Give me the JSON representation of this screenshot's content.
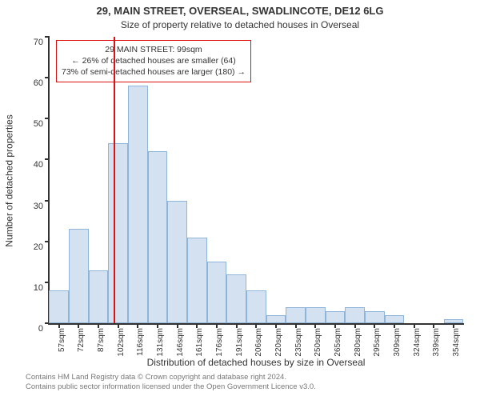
{
  "titles": {
    "main": "29, MAIN STREET, OVERSEAL, SWADLINCOTE, DE12 6LG",
    "sub": "Size of property relative to detached houses in Overseal"
  },
  "axes": {
    "ylabel": "Number of detached properties",
    "xlabel": "Distribution of detached houses by size in Overseal",
    "ylim": [
      0,
      70
    ],
    "ytick_step": 10,
    "yticks": [
      0,
      10,
      20,
      30,
      40,
      50,
      60,
      70
    ],
    "bar_color": "#d3e1f1",
    "bar_border_color": "#8fb4da",
    "axis_color": "#333333",
    "background": "#ffffff"
  },
  "annotation": {
    "line1": "29 MAIN STREET: 99sqm",
    "line2": "← 26% of detached houses are smaller (64)",
    "line3": "73% of semi-detached houses are larger (180) →",
    "marker_x_value": 99,
    "marker_color": "#dd1111",
    "box_border_color": "#dd1111"
  },
  "chart": {
    "type": "histogram",
    "bin_width_sqm": 15,
    "x_start": 50,
    "x_end": 365,
    "tick_labels": [
      "57sqm",
      "72sqm",
      "87sqm",
      "102sqm",
      "116sqm",
      "131sqm",
      "146sqm",
      "161sqm",
      "176sqm",
      "191sqm",
      "206sqm",
      "220sqm",
      "235sqm",
      "250sqm",
      "265sqm",
      "280sqm",
      "295sqm",
      "309sqm",
      "324sqm",
      "339sqm",
      "354sqm"
    ],
    "values": [
      8,
      23,
      13,
      44,
      58,
      42,
      30,
      21,
      15,
      12,
      8,
      2,
      4,
      4,
      3,
      4,
      3,
      2,
      0,
      0,
      1
    ]
  },
  "footer": {
    "line1": "Contains HM Land Registry data © Crown copyright and database right 2024.",
    "line2": "Contains public sector information licensed under the Open Government Licence v3.0."
  }
}
